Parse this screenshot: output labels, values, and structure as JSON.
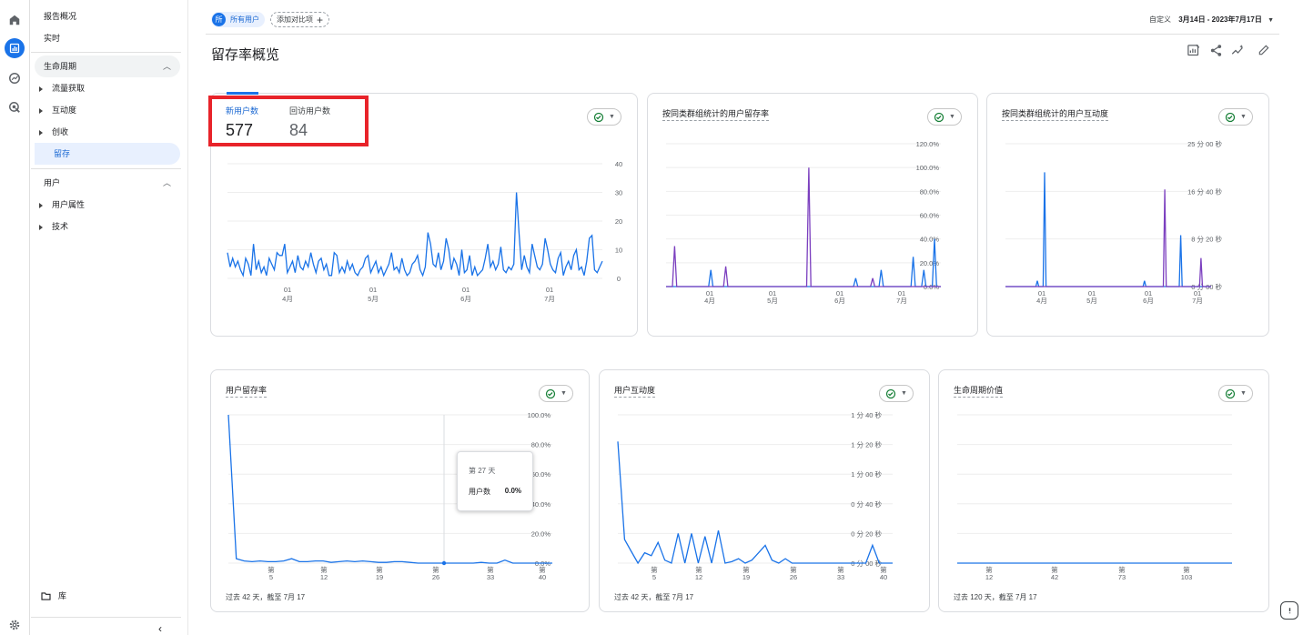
{
  "nav": {
    "overview": "报告概况",
    "realtime": "实时",
    "lifecycle": "生命周期",
    "acquisition": "流量获取",
    "engagement": "互动度",
    "monetization": "创收",
    "retention": "留存",
    "user": "用户",
    "user_attributes": "用户属性",
    "tech": "技术",
    "library": "库"
  },
  "topbar": {
    "segment_avatar": "所",
    "segment_label": "所有用户",
    "add_comparison": "添加对比项",
    "date_prefix": "自定义",
    "date_range": "3月14日 - 2023年7月17日"
  },
  "page": {
    "title": "留存率概览"
  },
  "cards": {
    "main": {
      "tab1_label": "新用户数",
      "tab1_value": "577",
      "tab2_label": "回访用户数",
      "tab2_value": "84",
      "y_ticks": [
        "40",
        "30",
        "20",
        "10",
        "0"
      ],
      "x_ticks": [
        [
          "01",
          "4月"
        ],
        [
          "01",
          "5月"
        ],
        [
          "01",
          "6月"
        ],
        [
          "01",
          "7月"
        ]
      ]
    },
    "cohort_retention": {
      "title": "按同类群组统计的用户留存率",
      "y_ticks": [
        "120.0%",
        "100.0%",
        "80.0%",
        "60.0%",
        "40.0%",
        "20.0%",
        "0.0%"
      ],
      "x_ticks": [
        [
          "01",
          "4月"
        ],
        [
          "01",
          "5月"
        ],
        [
          "01",
          "6月"
        ],
        [
          "01",
          "7月"
        ]
      ]
    },
    "cohort_engagement": {
      "title": "按同类群组统计的用户互动度",
      "y_ticks": [
        "25 分 00 秒",
        "16 分 40 秒",
        "8 分 20 秒",
        "0 分 00 秒"
      ],
      "x_ticks": [
        [
          "01",
          "4月"
        ],
        [
          "01",
          "5月"
        ],
        [
          "01",
          "6月"
        ],
        [
          "01",
          "7月"
        ]
      ]
    },
    "user_retention": {
      "title": "用户留存率",
      "y_ticks": [
        "100.0%",
        "80.0%",
        "60.0%",
        "40.0%",
        "20.0%",
        "0.0%"
      ],
      "x_prefix": "第",
      "x_ticks": [
        "5",
        "12",
        "19",
        "26",
        "33",
        "40"
      ],
      "footer": "过去 42 天，截至 7月 17",
      "tooltip_day": "第 27 天",
      "tooltip_label": "用户数",
      "tooltip_value": "0.0%"
    },
    "user_engagement": {
      "title": "用户互动度",
      "y_ticks": [
        "1 分 40 秒",
        "1 分 20 秒",
        "1 分 00 秒",
        "0 分 40 秒",
        "0 分 20 秒",
        "0 分 00 秒"
      ],
      "x_prefix": "第",
      "x_ticks": [
        "5",
        "12",
        "19",
        "26",
        "33",
        "40"
      ],
      "footer": "过去 42 天，截至 7月 17"
    },
    "ltv": {
      "title": "生命周期价值",
      "x_prefix": "第",
      "x_ticks": [
        "12",
        "42",
        "73",
        "103"
      ],
      "footer": "过去 120 天，截至 7月 17"
    }
  },
  "chart_data": [
    {
      "type": "line",
      "ylim": [
        0,
        40
      ],
      "series": [
        {
          "values": [
            9,
            4,
            7,
            4,
            6,
            3,
            1,
            7,
            5,
            1,
            12,
            3,
            6,
            2,
            4,
            1,
            7,
            5,
            3,
            9,
            8,
            8,
            12,
            2,
            4,
            6,
            2,
            8,
            4,
            3,
            6,
            4,
            9,
            5,
            2,
            6,
            7,
            3,
            5,
            1,
            1,
            9,
            8,
            2,
            4,
            2,
            6,
            3,
            5,
            2,
            1,
            3,
            4,
            7,
            8,
            2,
            4,
            6,
            2,
            4,
            1,
            3,
            5,
            9,
            3,
            4,
            2,
            7,
            3,
            1,
            2,
            5,
            6,
            8,
            3,
            1,
            4,
            16,
            12,
            5,
            4,
            9,
            3,
            6,
            14,
            10,
            3,
            7,
            5,
            1,
            10,
            2,
            3,
            8,
            1,
            4,
            1,
            2,
            3,
            7,
            12,
            4,
            6,
            3,
            5,
            11,
            3,
            2,
            4,
            3,
            5,
            30,
            16,
            3,
            8,
            4,
            2,
            12,
            8,
            4,
            3,
            5,
            14,
            10,
            5,
            3,
            2,
            7,
            9,
            1,
            4,
            6,
            3,
            8,
            10,
            3,
            4,
            1,
            6,
            14,
            15,
            3,
            2,
            4,
            6
          ]
        }
      ]
    },
    {
      "type": "line",
      "ylim": [
        0,
        120
      ],
      "series": [
        {
          "values": [
            0,
            0,
            0,
            0,
            0,
            0,
            0,
            0,
            0,
            0,
            0,
            0,
            0,
            0,
            0,
            0,
            0,
            0,
            0,
            0,
            0,
            14,
            0,
            0,
            0,
            0,
            0,
            0,
            0,
            0,
            0,
            0,
            0,
            0,
            0,
            0,
            0,
            0,
            0,
            0,
            0,
            0,
            0,
            0,
            0,
            0,
            0,
            0,
            0,
            0,
            0,
            0,
            0,
            0,
            0,
            0,
            0,
            0,
            0,
            0,
            0,
            0,
            0,
            0,
            0,
            0,
            0,
            0,
            0,
            0,
            0,
            0,
            0,
            0,
            0,
            0,
            0,
            0,
            0,
            0,
            0,
            0,
            0,
            0,
            0,
            0,
            0,
            0,
            0,
            7,
            0,
            0,
            0,
            0,
            0,
            0,
            0,
            0,
            0,
            0,
            0,
            14,
            0,
            0,
            0,
            0,
            0,
            0,
            0,
            0,
            0,
            0,
            0,
            0,
            0,
            0,
            25,
            0,
            0,
            0,
            0,
            14,
            0,
            0,
            0,
            0,
            40,
            0,
            0,
            0
          ]
        },
        {
          "values": [
            0,
            0,
            0,
            0,
            34,
            0,
            0,
            0,
            0,
            0,
            0,
            0,
            0,
            0,
            0,
            0,
            0,
            0,
            0,
            0,
            0,
            0,
            0,
            0,
            0,
            0,
            0,
            0,
            17,
            0,
            0,
            0,
            0,
            0,
            0,
            0,
            0,
            0,
            0,
            0,
            0,
            0,
            0,
            0,
            0,
            0,
            0,
            0,
            0,
            0,
            0,
            0,
            0,
            0,
            0,
            0,
            0,
            0,
            0,
            0,
            0,
            0,
            0,
            0,
            0,
            0,
            0,
            100,
            0,
            0,
            0,
            0,
            0,
            0,
            0,
            0,
            0,
            0,
            0,
            0,
            0,
            0,
            0,
            0,
            0,
            0,
            0,
            0,
            0,
            0,
            0,
            0,
            0,
            0,
            0,
            0,
            0,
            7,
            0,
            0,
            0,
            0,
            0,
            0,
            0,
            0,
            0,
            0,
            0,
            0,
            0,
            0,
            0,
            0,
            0,
            0,
            0,
            0,
            0,
            0,
            0,
            0,
            0,
            0,
            0,
            0,
            0,
            0,
            0,
            0
          ]
        }
      ]
    },
    {
      "type": "line",
      "ylim": [
        0,
        25
      ],
      "series": [
        {
          "values": [
            0,
            0,
            0,
            0,
            0,
            0,
            0,
            0,
            0,
            0,
            0,
            0,
            0,
            0,
            0,
            0,
            0,
            0,
            0,
            0,
            0,
            0,
            1,
            0,
            0,
            0,
            0,
            20,
            0,
            0,
            0,
            0,
            0,
            0,
            0,
            0,
            0,
            0,
            0,
            0,
            0,
            0,
            0,
            0,
            0,
            0,
            0,
            0,
            0,
            0,
            0,
            0,
            0,
            0,
            0,
            0,
            0,
            0,
            0,
            0,
            0,
            0,
            0,
            0,
            0,
            0,
            0,
            0,
            0,
            0,
            0,
            0,
            0,
            0,
            0,
            0,
            0,
            0,
            0,
            0,
            0,
            0,
            0,
            0,
            0,
            0,
            0,
            0,
            0,
            0,
            0,
            0,
            0,
            0,
            0,
            0,
            1,
            0,
            0,
            0,
            0,
            0,
            0,
            0,
            0,
            0,
            0,
            0,
            0,
            0,
            0,
            0,
            0,
            0,
            0,
            0,
            0,
            0,
            0,
            0,
            0,
            9,
            0,
            0,
            0,
            0,
            0,
            0,
            0,
            0,
            0,
            0,
            0,
            0,
            0,
            0,
            0,
            0,
            0,
            0,
            0,
            0,
            0
          ]
        },
        {
          "values": [
            0,
            0,
            0,
            0,
            0,
            0,
            0,
            0,
            0,
            0,
            0,
            0,
            0,
            0,
            0,
            0,
            0,
            0,
            0,
            0,
            0,
            0,
            0,
            0,
            0,
            0,
            0,
            0,
            0,
            0,
            0,
            0,
            0,
            0,
            0,
            0,
            0,
            0,
            0,
            0,
            0,
            0,
            0,
            0,
            0,
            0,
            0,
            0,
            0,
            0,
            0,
            0,
            0,
            0,
            0,
            0,
            0,
            0,
            0,
            0,
            0,
            0,
            0,
            0,
            0,
            0,
            0,
            0,
            0,
            0,
            0,
            0,
            0,
            0,
            0,
            0,
            0,
            0,
            0,
            0,
            0,
            0,
            0,
            0,
            0,
            0,
            0,
            0,
            0,
            0,
            0,
            0,
            0,
            0,
            0,
            0,
            0,
            0,
            0,
            0,
            0,
            0,
            0,
            0,
            0,
            0,
            0,
            0,
            0,
            0,
            17,
            0,
            0,
            0,
            0,
            0,
            0,
            0,
            0,
            0,
            0,
            0,
            0,
            0,
            0,
            0,
            0,
            0,
            0,
            0,
            0,
            0,
            0,
            0,
            0,
            5,
            0,
            0,
            0,
            0,
            0,
            0,
            0
          ]
        }
      ]
    },
    {
      "type": "line",
      "ylim": [
        0,
        100
      ],
      "series": [
        {
          "values": [
            100,
            3,
            1.5,
            1,
            1.5,
            1,
            1,
            1.5,
            3,
            1,
            1,
            1.5,
            1.5,
            0.5,
            1,
            1.5,
            1,
            1.5,
            1,
            0.5,
            0.5,
            1,
            1,
            0.5,
            0,
            0,
            0,
            0,
            0,
            0,
            0,
            0,
            0.5,
            0,
            0,
            2,
            0,
            0,
            0,
            0,
            0,
            0
          ]
        }
      ]
    },
    {
      "type": "line",
      "ylim": [
        0,
        100
      ],
      "series": [
        {
          "values": [
            82,
            16,
            8,
            0,
            7,
            5,
            14,
            2,
            0,
            20,
            0,
            20,
            0,
            18,
            0,
            22,
            0,
            1,
            3,
            0,
            2,
            7,
            12,
            2,
            0,
            3,
            0,
            0,
            0,
            0,
            0,
            0,
            0,
            0,
            0,
            0,
            0,
            0,
            12,
            0,
            0,
            0
          ]
        }
      ]
    },
    {
      "type": "line",
      "series": [
        {
          "values": [
            0,
            0,
            0,
            0,
            0,
            0,
            0,
            0,
            0,
            0,
            0,
            0,
            0,
            0,
            0,
            0,
            0,
            0,
            0,
            0,
            0,
            0,
            0,
            0,
            0,
            0,
            0,
            0,
            0,
            0,
            0,
            0,
            0,
            0,
            0,
            0,
            0,
            0,
            0,
            0
          ]
        }
      ]
    }
  ]
}
